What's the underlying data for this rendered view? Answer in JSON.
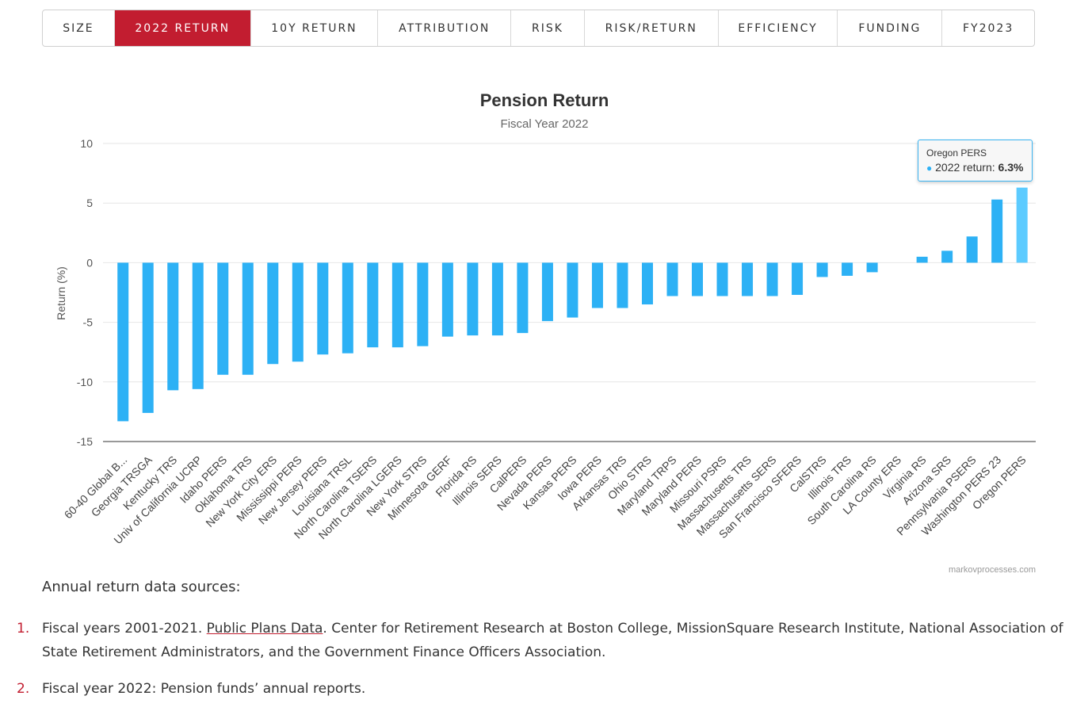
{
  "tabs": [
    {
      "label": "SIZE",
      "active": false
    },
    {
      "label": "2022 RETURN",
      "active": true
    },
    {
      "label": "10Y RETURN",
      "active": false
    },
    {
      "label": "ATTRIBUTION",
      "active": false
    },
    {
      "label": "RISK",
      "active": false
    },
    {
      "label": "RISK/RETURN",
      "active": false
    },
    {
      "label": "EFFICIENCY",
      "active": false
    },
    {
      "label": "FUNDING",
      "active": false
    },
    {
      "label": "FY2023",
      "active": false
    }
  ],
  "chart_data": {
    "type": "bar",
    "title": "Pension Return",
    "subtitle": "Fiscal Year 2022",
    "xlabel": "",
    "ylabel": "Return (%)",
    "ylim": [
      -15,
      10
    ],
    "yticks": [
      10,
      5,
      0,
      -5,
      -10,
      -15
    ],
    "grid": true,
    "legend": false,
    "bar_color": "#2db1f5",
    "highlight_color": "#5ccbff",
    "highlight_index": 36,
    "categories": [
      "60-40 Global B...",
      "Georgia TRSGA",
      "Kentucky TRS",
      "Univ of California UCRP",
      "Idaho PERS",
      "Oklahoma TRS",
      "New York City ERS",
      "Mississippi PERS",
      "New Jersey PERS",
      "Louisiana TRSL",
      "North Carolina TSERS",
      "North Carolina LGERS",
      "New York STRS",
      "Minnesota GERF",
      "Florida RS",
      "Illinois SERS",
      "CalPERS",
      "Nevada PERS",
      "Kansas PERS",
      "Iowa PERS",
      "Arkansas TRS",
      "Ohio STRS",
      "Maryland TRPS",
      "Maryland PERS",
      "Missouri PSRS",
      "Massachusetts TRS",
      "Massachusetts SERS",
      "San Francisco SFERS",
      "CalSTRS",
      "Illinois TRS",
      "South Carolina RS",
      "LA County ERS",
      "Virginia RS",
      "Arizona SRS",
      "Pennsylvania PSERS",
      "Washington PERS 23",
      "Oregon PERS"
    ],
    "series": [
      {
        "name": "2022 return",
        "values": [
          -13.3,
          -12.6,
          -10.7,
          -10.6,
          -9.4,
          -9.4,
          -8.5,
          -8.3,
          -7.7,
          -7.6,
          -7.1,
          -7.1,
          -7.0,
          -6.2,
          -6.1,
          -6.1,
          -5.9,
          -4.9,
          -4.6,
          -3.8,
          -3.8,
          -3.5,
          -2.8,
          -2.8,
          -2.8,
          -2.8,
          -2.8,
          -2.7,
          -1.2,
          -1.1,
          -0.8,
          0.0,
          0.5,
          1.0,
          2.2,
          5.3,
          6.3
        ]
      }
    ],
    "credit": "markovprocesses.com"
  },
  "tooltip": {
    "title": "Oregon PERS",
    "series_label": "2022 return: ",
    "value": "6.3%"
  },
  "sources": {
    "heading": "Annual return data sources:",
    "items": [
      {
        "num": "1.",
        "before": "Fiscal years 2001-2021. ",
        "link": "Public Plans Data",
        "after": ". Center for Retirement Research at Boston College, MissionSquare Research Institute, National Association of State Retirement Administrators, and the Government Finance Officers Association."
      },
      {
        "num": "2.",
        "text": "Fiscal year 2022: Pension funds’ annual reports."
      }
    ]
  }
}
